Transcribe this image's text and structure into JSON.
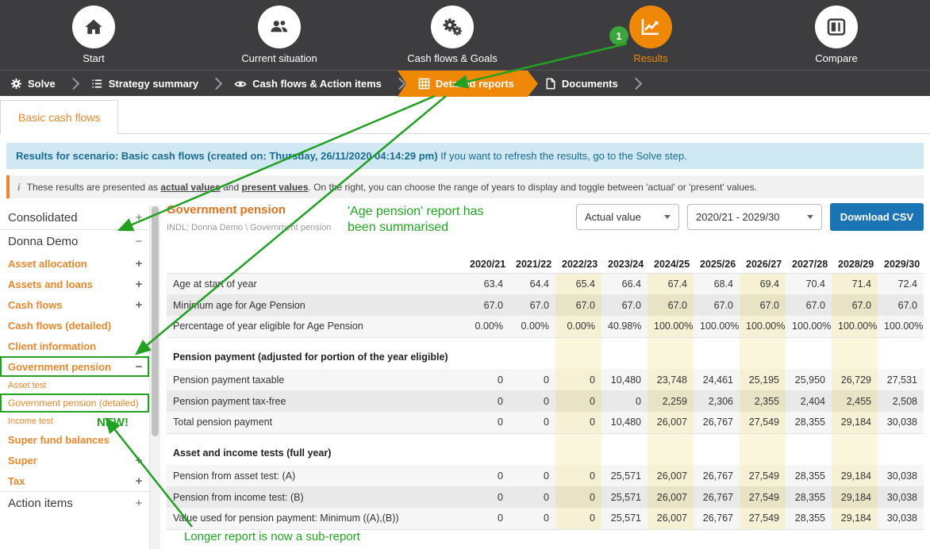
{
  "top_nav": {
    "badge": "1",
    "items": [
      {
        "label": "Start"
      },
      {
        "label": "Current situation"
      },
      {
        "label": "Cash flows & Goals"
      },
      {
        "label": "Results"
      },
      {
        "label": "Compare"
      }
    ]
  },
  "sub_nav": {
    "items": [
      {
        "label": "Solve"
      },
      {
        "label": "Strategy summary"
      },
      {
        "label": "Cash flows & Action items"
      },
      {
        "label": "Detailed reports"
      },
      {
        "label": "Documents"
      }
    ]
  },
  "tab": {
    "label": "Basic cash flows"
  },
  "banners": {
    "scenario_bold": "Results for scenario: Basic cash flows (created on: Thursday, 26/11/2020 04:14:29 pm)",
    "scenario_rest": " If you want to refresh the results, go to the Solve step.",
    "info_icon": "i",
    "info_prefix": "These results are presented as ",
    "info_link1": "actual values",
    "info_mid": " and ",
    "info_link2": "present values",
    "info_suffix": ". On the right, you can choose the range of years to display and toggle between 'actual' or 'present' values."
  },
  "sidebar": {
    "items": [
      {
        "label": "Consolidated",
        "level": "top",
        "expander": "+"
      },
      {
        "label": "Donna Demo",
        "level": "top",
        "expander": "-"
      },
      {
        "label": "Asset allocation",
        "level": "child",
        "expander": "+"
      },
      {
        "label": "Assets and loans",
        "level": "child",
        "expander": "+"
      },
      {
        "label": "Cash flows",
        "level": "child",
        "expander": "+"
      },
      {
        "label": "Cash flows (detailed)",
        "level": "child"
      },
      {
        "label": "Client information",
        "level": "child"
      },
      {
        "label": "Government pension",
        "level": "child",
        "expander": "-",
        "boxed": true
      },
      {
        "label": "Asset test",
        "level": "sub"
      },
      {
        "label": "Government pension (detailed)",
        "level": "sub",
        "boxed": true
      },
      {
        "label": "Income test",
        "level": "sub"
      },
      {
        "label": "Super fund balances",
        "level": "child"
      },
      {
        "label": "Super",
        "level": "child",
        "expander": "+"
      },
      {
        "label": "Tax",
        "level": "child",
        "expander": "+"
      },
      {
        "label": "Action items",
        "level": "top",
        "expander": "+"
      }
    ]
  },
  "report": {
    "title": "Government pension",
    "subtitle": "INDL: Donna Demo \\ Government pension",
    "value_select": "Actual value",
    "range_select": "2020/21 - 2029/30",
    "download_label": "Download CSV",
    "table": {
      "columns": [
        "2020/21",
        "2021/22",
        "2022/23",
        "2023/24",
        "2024/25",
        "2025/26",
        "2026/27",
        "2027/28",
        "2028/29",
        "2029/30"
      ],
      "highlight_columns": [
        2,
        4,
        6,
        8
      ],
      "sections": [
        {
          "header": null,
          "rows": [
            {
              "label": "Age at start of year",
              "values": [
                "63.4",
                "64.4",
                "65.4",
                "66.4",
                "67.4",
                "68.4",
                "69.4",
                "70.4",
                "71.4",
                "72.4"
              ]
            },
            {
              "label": "Minimum age for Age Pension",
              "values": [
                "67.0",
                "67.0",
                "67.0",
                "67.0",
                "67.0",
                "67.0",
                "67.0",
                "67.0",
                "67.0",
                "67.0"
              ]
            },
            {
              "label": "Percentage of year eligible for Age Pension",
              "values": [
                "0.00%",
                "0.00%",
                "0.00%",
                "40.98%",
                "100.00%",
                "100.00%",
                "100.00%",
                "100.00%",
                "100.00%",
                "100.00%"
              ]
            }
          ]
        },
        {
          "header": "Pension payment (adjusted for portion of the year eligible)",
          "rows": [
            {
              "label": "Pension payment taxable",
              "values": [
                "0",
                "0",
                "0",
                "10,480",
                "23,748",
                "24,461",
                "25,195",
                "25,950",
                "26,729",
                "27,531"
              ]
            },
            {
              "label": "Pension payment tax-free",
              "values": [
                "0",
                "0",
                "0",
                "0",
                "2,259",
                "2,306",
                "2,355",
                "2,404",
                "2,455",
                "2,508"
              ]
            },
            {
              "label": "Total pension payment",
              "values": [
                "0",
                "0",
                "0",
                "10,480",
                "26,007",
                "26,767",
                "27,549",
                "28,355",
                "29,184",
                "30,038"
              ]
            }
          ]
        },
        {
          "header": "Asset and income tests (full year)",
          "rows": [
            {
              "label": "Pension from asset test: (A)",
              "values": [
                "0",
                "0",
                "0",
                "25,571",
                "26,007",
                "26,767",
                "27,549",
                "28,355",
                "29,184",
                "30,038"
              ]
            },
            {
              "label": "Pension from income test: (B)",
              "values": [
                "0",
                "0",
                "0",
                "25,571",
                "26,007",
                "26,767",
                "27,549",
                "28,355",
                "29,184",
                "30,038"
              ]
            },
            {
              "label": "Value used for pension payment: Minimum ((A),(B))",
              "values": [
                "0",
                "0",
                "0",
                "25,571",
                "26,007",
                "26,767",
                "27,549",
                "28,355",
                "29,184",
                "30,038"
              ]
            }
          ]
        }
      ]
    }
  },
  "annotations": {
    "summary_note": "'Age pension' report has\nbeen summarised",
    "new_label": "NEW!",
    "subreport_note": "Longer report is now a sub-report"
  }
}
